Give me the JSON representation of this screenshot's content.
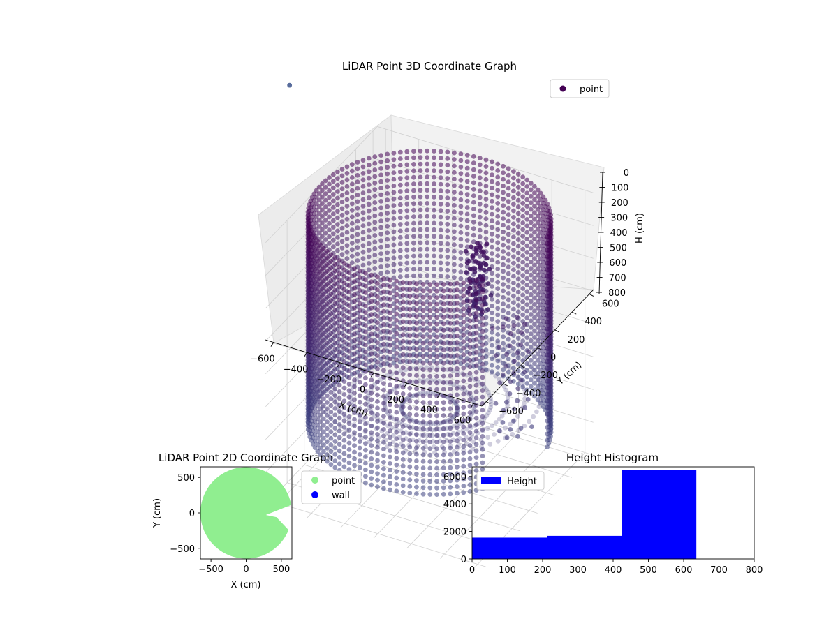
{
  "chart_data": [
    {
      "type": "scatter",
      "projection": "3d",
      "title": "LiDAR Point 3D Coordinate Graph",
      "xlabel": "X (cm)",
      "ylabel": "Y (cm)",
      "zlabel": "H (cm)",
      "xlim": [
        -650,
        650
      ],
      "ylim": [
        -650,
        650
      ],
      "zlim": [
        800,
        0
      ],
      "z_axis_inverted": true,
      "xticks": [
        -600,
        -400,
        -200,
        0,
        200,
        400,
        600
      ],
      "yticks": [
        -600,
        -400,
        -200,
        0,
        200,
        400,
        600
      ],
      "zticks": [
        0,
        100,
        200,
        300,
        400,
        500,
        600,
        700,
        800
      ],
      "colormap": "viridis",
      "grid": true,
      "legend": {
        "position": "top-right",
        "entries": [
          {
            "name": "point",
            "color": "#440154"
          }
        ]
      },
      "series": [
        {
          "name": "point",
          "description": "cylindrical wall of points, radius about 650 cm, heights 0 to 640 cm, with an opening near angle 0 and an object cluster inside",
          "wall_radius": 650,
          "wall_height_range": [
            0,
            640
          ],
          "gap_angle_range_deg": [
            -35,
            12
          ]
        }
      ]
    },
    {
      "type": "scatter",
      "title": "LiDAR Point 2D Coordinate Graph",
      "xlabel": "X (cm)",
      "ylabel": "Y (cm)",
      "xlim": [
        -650,
        650
      ],
      "ylim": [
        -650,
        650
      ],
      "xticks": [
        -500,
        0,
        500
      ],
      "yticks": [
        -500,
        0,
        500
      ],
      "legend": {
        "position": "outside-right",
        "entries": [
          {
            "name": "point",
            "color": "#90ee90"
          },
          {
            "name": "wall",
            "color": "#0000ff"
          }
        ]
      },
      "series": [
        {
          "name": "point",
          "color": "#90ee90",
          "shape": "filled disc of radius about 650 cm with a notch opening toward +X"
        }
      ]
    },
    {
      "type": "bar",
      "title": "Height Histogram",
      "xlabel": "",
      "ylabel": "",
      "xlim": [
        0,
        800
      ],
      "ylim": [
        0,
        6700
      ],
      "xticks": [
        0,
        100,
        200,
        300,
        400,
        500,
        600,
        700,
        800
      ],
      "yticks": [
        0,
        2000,
        4000,
        6000
      ],
      "legend": {
        "position": "top-left",
        "entries": [
          {
            "name": "Height",
            "color": "#0000ff"
          }
        ]
      },
      "bins": [
        {
          "start": 0,
          "end": 212,
          "count": 1550
        },
        {
          "start": 212,
          "end": 424,
          "count": 1680
        },
        {
          "start": 424,
          "end": 636,
          "count": 6450
        },
        {
          "start": 636,
          "end": 848,
          "count": 0
        }
      ],
      "color": "#0000ff"
    }
  ]
}
